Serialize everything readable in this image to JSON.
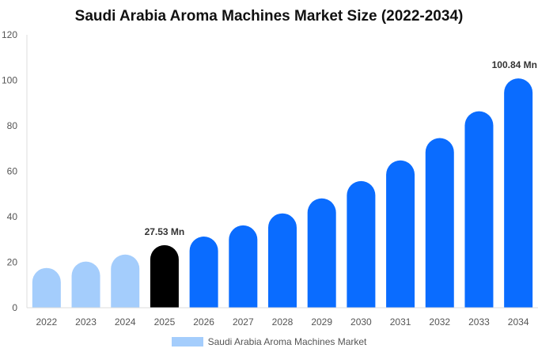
{
  "chart_data": {
    "type": "bar",
    "title": "Saudi Arabia Aroma Machines Market Size (2022-2034)",
    "categories": [
      "2022",
      "2023",
      "2024",
      "2025",
      "2026",
      "2027",
      "2028",
      "2029",
      "2030",
      "2031",
      "2032",
      "2033",
      "2034"
    ],
    "series": [
      {
        "name": "Saudi Arabia Aroma Machines Market",
        "values": [
          17.5,
          20.3,
          23.4,
          27.53,
          31.3,
          36.2,
          41.5,
          48.1,
          55.7,
          64.8,
          74.6,
          86.4,
          100.84
        ]
      }
    ],
    "ylim": [
      0,
      120
    ],
    "yticks": [
      0,
      20,
      40,
      60,
      80,
      100,
      120
    ],
    "data_labels": [
      {
        "index": 3,
        "text": "27.53 Mn"
      },
      {
        "index": 12,
        "text": "100.84 Mn"
      }
    ],
    "colors": {
      "historical": "#a4cdfc",
      "current": "#000000",
      "forecast": "#0a6cff"
    },
    "historical_count": 3,
    "current_index": 3,
    "grid": false,
    "legend_position": "bottom-center"
  }
}
